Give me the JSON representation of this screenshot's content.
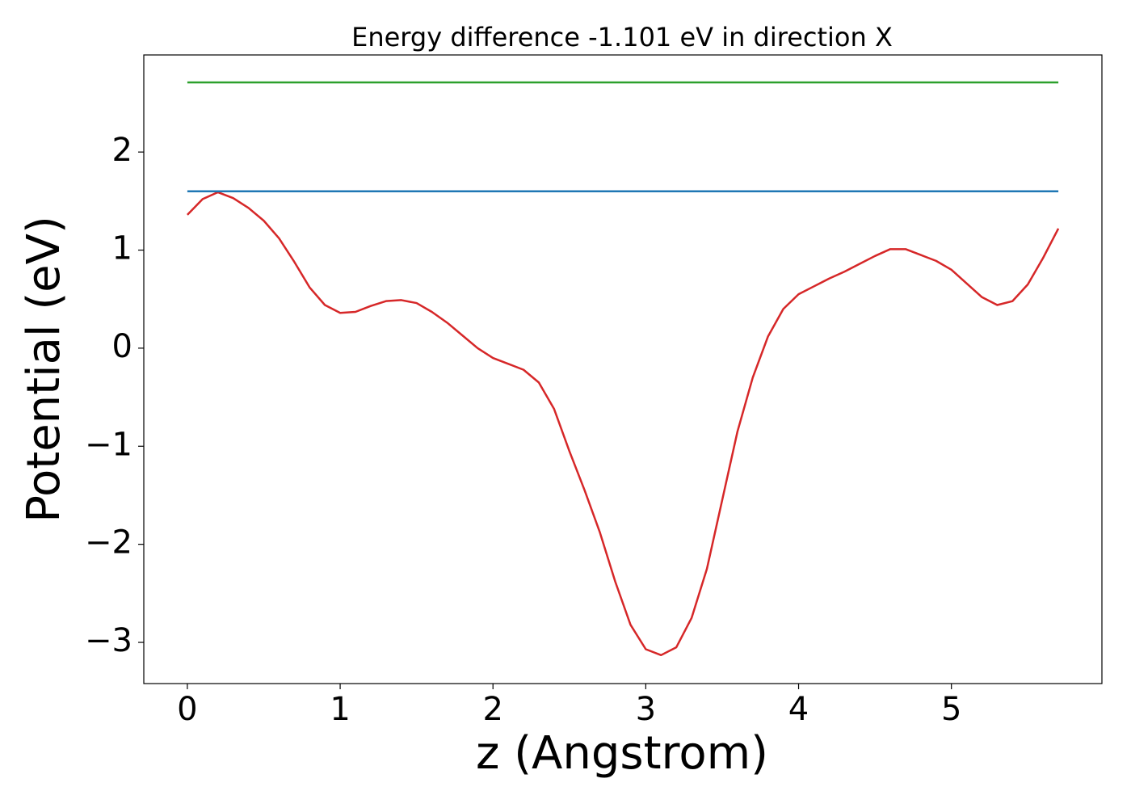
{
  "chart_data": {
    "type": "line",
    "title": "Energy difference -1.101 eV in direction X",
    "xlabel": "z (Angstrom)",
    "ylabel": "Potential (eV)",
    "x": [
      0,
      0.1,
      0.2,
      0.3,
      0.4,
      0.5,
      0.6,
      0.7,
      0.8,
      0.9,
      1.0,
      1.1,
      1.2,
      1.3,
      1.4,
      1.5,
      1.6,
      1.7,
      1.8,
      1.9,
      2.0,
      2.1,
      2.2,
      2.3,
      2.4,
      2.5,
      2.6,
      2.7,
      2.8,
      2.9,
      3.0,
      3.1,
      3.2,
      3.3,
      3.4,
      3.5,
      3.6,
      3.7,
      3.8,
      3.9,
      4.0,
      4.1,
      4.2,
      4.3,
      4.4,
      4.5,
      4.6,
      4.7,
      4.8,
      4.9,
      5.0,
      5.1,
      5.2,
      5.3,
      5.4,
      5.5,
      5.6,
      5.7
    ],
    "series": [
      {
        "color": "#d62728",
        "values": [
          1.36,
          1.52,
          1.59,
          1.53,
          1.43,
          1.3,
          1.12,
          0.88,
          0.62,
          0.44,
          0.36,
          0.37,
          0.43,
          0.48,
          0.49,
          0.46,
          0.37,
          0.26,
          0.13,
          0.0,
          -0.1,
          -0.16,
          -0.22,
          -0.35,
          -0.62,
          -1.05,
          -1.45,
          -1.88,
          -2.38,
          -2.82,
          -3.07,
          -3.13,
          -3.05,
          -2.75,
          -2.25,
          -1.55,
          -0.85,
          -0.3,
          0.12,
          0.4,
          0.55,
          0.63,
          0.71,
          0.78,
          0.86,
          0.94,
          1.01,
          1.01,
          0.95,
          0.89,
          0.8,
          0.66,
          0.52,
          0.44,
          0.48,
          0.65,
          0.92,
          1.22
        ]
      },
      {
        "color": "#1f77b4",
        "values": [
          1.6,
          1.6,
          1.6,
          1.6,
          1.6,
          1.6,
          1.6,
          1.6,
          1.6,
          1.6,
          1.6,
          1.6,
          1.6,
          1.6,
          1.6,
          1.6,
          1.6,
          1.6,
          1.6,
          1.6,
          1.6,
          1.6,
          1.6,
          1.6,
          1.6,
          1.6,
          1.6,
          1.6,
          1.6,
          1.6,
          1.6,
          1.6,
          1.6,
          1.6,
          1.6,
          1.6,
          1.6,
          1.6,
          1.6,
          1.6,
          1.6,
          1.6,
          1.6,
          1.6,
          1.6,
          1.6,
          1.6,
          1.6,
          1.6,
          1.6,
          1.6,
          1.6,
          1.6,
          1.6,
          1.6,
          1.6,
          1.6,
          1.6
        ]
      },
      {
        "color": "#2ca02c",
        "values": [
          2.71,
          2.71,
          2.71,
          2.71,
          2.71,
          2.71,
          2.71,
          2.71,
          2.71,
          2.71,
          2.71,
          2.71,
          2.71,
          2.71,
          2.71,
          2.71,
          2.71,
          2.71,
          2.71,
          2.71,
          2.71,
          2.71,
          2.71,
          2.71,
          2.71,
          2.71,
          2.71,
          2.71,
          2.71,
          2.71,
          2.71,
          2.71,
          2.71,
          2.71,
          2.71,
          2.71,
          2.71,
          2.71,
          2.71,
          2.71,
          2.71,
          2.71,
          2.71,
          2.71,
          2.71,
          2.71,
          2.71,
          2.71,
          2.71,
          2.71,
          2.71,
          2.71,
          2.71,
          2.71,
          2.71,
          2.71,
          2.71,
          2.71
        ]
      }
    ],
    "xlim": [
      -0.285,
      5.985
    ],
    "xticks": [
      0,
      1,
      2,
      3,
      4,
      5
    ],
    "ylim": [
      -3.42,
      2.99
    ],
    "yticks": [
      {
        "value": -3,
        "label": "−3"
      },
      {
        "value": -2,
        "label": "−2"
      },
      {
        "value": -1,
        "label": "−1"
      },
      0,
      1,
      2
    ],
    "grid": false
  }
}
